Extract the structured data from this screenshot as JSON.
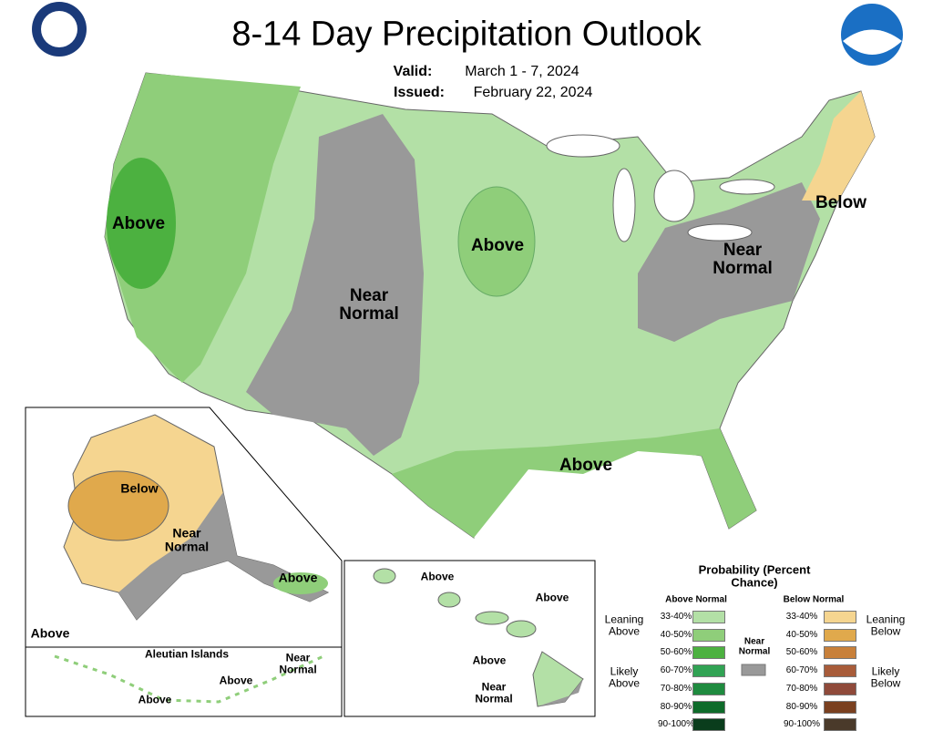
{
  "header": {
    "title": "8-14 Day Precipitation Outlook",
    "valid_label": "Valid:",
    "valid": "March 1 - 7, 2024",
    "issued_label": "Issued:",
    "issued": "February 22, 2024"
  },
  "map": {
    "conus_labels": [
      "Above",
      "Near Normal",
      "Above",
      "Near Normal",
      "Below",
      "Above"
    ],
    "alaska_labels": [
      "Below",
      "Near Normal",
      "Above",
      "Above"
    ],
    "aleutian": {
      "title": "Aleutian Islands",
      "labels": [
        "Near Normal",
        "Above",
        "Above"
      ]
    },
    "hawaii_labels": [
      "Above",
      "Above",
      "Above",
      "Near Normal"
    ]
  },
  "legend": {
    "title": "Probability (Percent Chance)",
    "above_header": "Above Normal",
    "below_header": "Below Normal",
    "near": {
      "label": "Near Normal",
      "color": "#999999"
    },
    "leaning_above": "Leaning Above",
    "likely_above": "Likely Above",
    "leaning_below": "Leaning Below",
    "likely_below": "Likely Below",
    "above": [
      {
        "label": "33-40%",
        "color": "#b3e0a6"
      },
      {
        "label": "40-50%",
        "color": "#8fce7a"
      },
      {
        "label": "50-60%",
        "color": "#4cb140"
      },
      {
        "label": "60-70%",
        "color": "#31a354"
      },
      {
        "label": "70-80%",
        "color": "#1f8b3f"
      },
      {
        "label": "80-90%",
        "color": "#0e6b2a"
      },
      {
        "label": "90-100%",
        "color": "#0a3d1c"
      }
    ],
    "below": [
      {
        "label": "33-40%",
        "color": "#f5d590"
      },
      {
        "label": "40-50%",
        "color": "#e0a94c"
      },
      {
        "label": "50-60%",
        "color": "#c8803a"
      },
      {
        "label": "60-70%",
        "color": "#a85c3a"
      },
      {
        "label": "70-80%",
        "color": "#8f4a3a"
      },
      {
        "label": "80-90%",
        "color": "#7a4020"
      },
      {
        "label": "90-100%",
        "color": "#4a3a2a"
      }
    ]
  }
}
